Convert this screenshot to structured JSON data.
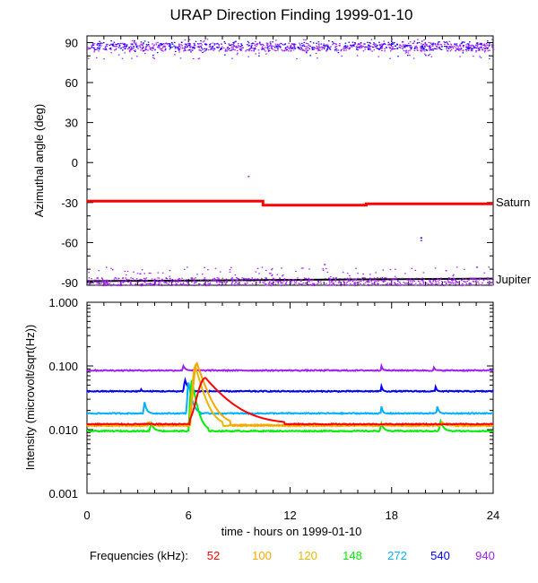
{
  "title": "URAP Direction Finding  1999-01-10",
  "colors": {
    "f52": "#ff0000",
    "f100": "#ffa500",
    "f120": "#e6b800",
    "f148": "#00ee00",
    "f272": "#00b0ff",
    "f540": "#0000ff",
    "f940": "#a020f0",
    "planet_line": "#000000"
  },
  "chart_data": [
    {
      "type": "scatter",
      "ylabel": "Azimuthal angle (deg)",
      "xlim": [
        0,
        24
      ],
      "ylim": [
        -92,
        95
      ],
      "yticks": [
        "90",
        "60",
        "30",
        "0",
        "-30",
        "-60",
        "-90"
      ],
      "ytick_values": [
        90,
        60,
        30,
        0,
        -30,
        -60,
        -90
      ],
      "annotations": [
        "Saturn",
        "Jupiter"
      ],
      "series": [
        {
          "name": "Saturn",
          "color": "#ff0000",
          "points": [
            [
              0,
              -29
            ],
            [
              10.4,
              -29
            ],
            [
              10.4,
              -32
            ],
            [
              16.5,
              -32
            ],
            [
              16.5,
              -31
            ],
            [
              24,
              -31
            ]
          ]
        },
        {
          "name": "Jupiter",
          "color": "#000000",
          "points": [
            [
              0,
              -89
            ],
            [
              24,
              -87
            ]
          ]
        },
        {
          "color": "#a020f0",
          "band": "near 90",
          "y_center": 87,
          "y_spread": [
            78,
            93
          ]
        },
        {
          "color": "#a020f0",
          "band": "near -90",
          "y_center": -89,
          "y_spread": [
            -92,
            -78
          ]
        },
        {
          "color": "#0000ff",
          "band": "near 90",
          "y_center": 88,
          "y_spread": [
            80,
            92
          ]
        }
      ]
    },
    {
      "type": "line",
      "ylabel": "Intensity (microvolt/sqrt(Hz))",
      "xlabel": "time - hours on 1999-01-10",
      "xlim": [
        0,
        24
      ],
      "ylim": [
        0.001,
        1.0
      ],
      "log_y": true,
      "xticks": [
        "0",
        "6",
        "12",
        "18",
        "24"
      ],
      "xtick_values": [
        0,
        6,
        12,
        18,
        24
      ],
      "yticks": [
        "1.000",
        "0.100",
        "0.010",
        "0.001"
      ],
      "ytick_values": [
        1.0,
        0.1,
        0.01,
        0.001
      ],
      "legend_label": "Frequencies (kHz):",
      "series": [
        {
          "name": "940",
          "color": "#a020f0",
          "base": 0.085,
          "events": [
            [
              5.7,
              0.1,
              0.25
            ],
            [
              17.4,
              0.1,
              0.15
            ],
            [
              20.5,
              0.095,
              0.15
            ]
          ]
        },
        {
          "name": "540",
          "color": "#0000ff",
          "base": 0.04,
          "events": [
            [
              5.8,
              0.06,
              0.35
            ],
            [
              17.4,
              0.048,
              0.15
            ],
            [
              20.6,
              0.047,
              0.15
            ],
            [
              3.2,
              0.043,
              0.1
            ]
          ]
        },
        {
          "name": "272",
          "color": "#00b0ff",
          "base": 0.018,
          "events": [
            [
              3.4,
              0.027,
              0.25
            ],
            [
              6.0,
              0.055,
              0.4
            ],
            [
              17.4,
              0.023,
              0.15
            ],
            [
              20.7,
              0.023,
              0.2
            ]
          ]
        },
        {
          "name": "148",
          "color": "#00ee00",
          "base": 0.0095,
          "events": [
            [
              6.2,
              0.06,
              0.55
            ],
            [
              3.8,
              0.0125,
              0.35
            ],
            [
              17.4,
              0.0125,
              0.3
            ],
            [
              20.9,
              0.0135,
              0.35
            ]
          ]
        },
        {
          "name": "120",
          "color": "#e6b800",
          "base": 0.0115,
          "events": [
            [
              6.4,
              0.1,
              0.9
            ],
            [
              3.7,
              0.013,
              0.3
            ],
            [
              17.4,
              0.0125,
              0.3
            ],
            [
              21.0,
              0.013,
              0.4
            ]
          ]
        },
        {
          "name": "100",
          "color": "#ffa500",
          "base": 0.0118,
          "events": [
            [
              6.5,
              0.11,
              1.1
            ],
            [
              3.6,
              0.0128,
              0.3
            ],
            [
              21.0,
              0.0128,
              0.4
            ]
          ]
        },
        {
          "name": "52",
          "color": "#ff0000",
          "base": 0.0122,
          "events": [
            [
              7.0,
              0.065,
              2.6
            ]
          ]
        }
      ]
    }
  ]
}
